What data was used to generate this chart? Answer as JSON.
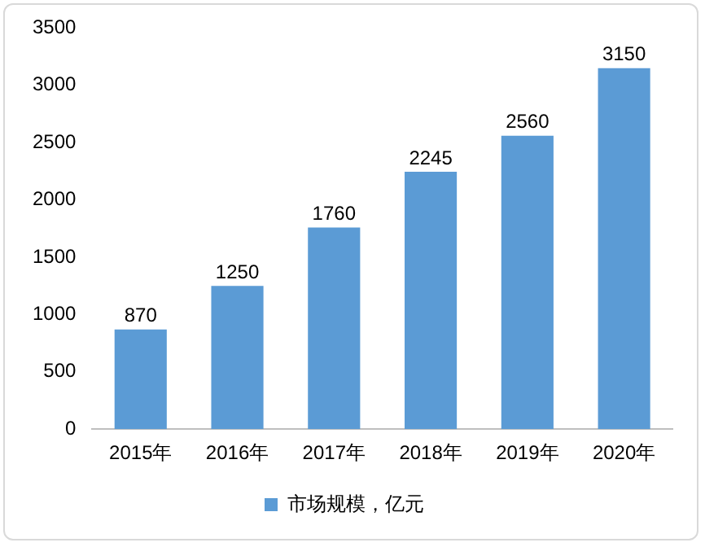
{
  "chart_data": {
    "type": "bar",
    "categories": [
      "2015年",
      "2016年",
      "2017年",
      "2018年",
      "2019年",
      "2020年"
    ],
    "series": [
      {
        "name": "市场规模，亿元",
        "color": "#5b9bd5",
        "values": [
          870,
          1250,
          1760,
          2245,
          2560,
          3150
        ]
      }
    ],
    "ylim": [
      0,
      3500
    ],
    "yticks": [
      0,
      500,
      1000,
      1500,
      2000,
      2500,
      3000,
      3500
    ],
    "data_labels": true,
    "legend": "bottom",
    "grid": false
  }
}
